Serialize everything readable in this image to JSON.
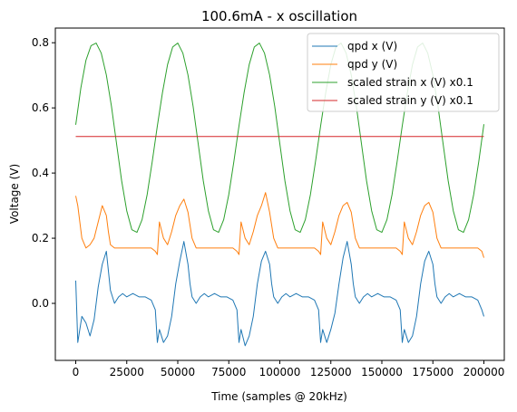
{
  "chart_data": {
    "type": "line",
    "title": "100.6mA - x oscillation",
    "xlabel": "Time (samples @ 20kHz)",
    "ylabel": "Voltage (V)",
    "xlim": [
      -10000,
      210000
    ],
    "ylim": [
      -0.175,
      0.845
    ],
    "xticks": [
      0,
      25000,
      50000,
      75000,
      100000,
      125000,
      150000,
      175000,
      200000
    ],
    "yticks": [
      0.0,
      0.2,
      0.4,
      0.6,
      0.8
    ],
    "xtick_labels": [
      "0",
      "25000",
      "50000",
      "75000",
      "100000",
      "125000",
      "150000",
      "175000",
      "200000"
    ],
    "ytick_labels": [
      "0.0",
      "0.2",
      "0.4",
      "0.6",
      "0.8"
    ],
    "grid": false,
    "legend_position": "top-right",
    "series": [
      {
        "name": "qpd x (V)",
        "color": "#1f77b4",
        "x": [
          0,
          1000,
          3000,
          5000,
          7000,
          9000,
          11000,
          13000,
          15000,
          16000,
          17000,
          19000,
          21000,
          23000,
          25000,
          28000,
          31000,
          34000,
          37000,
          39000,
          40000,
          41000,
          43000,
          45000,
          47000,
          49000,
          51000,
          53000,
          55000,
          56000,
          57000,
          59000,
          61000,
          63000,
          65000,
          68000,
          71000,
          74000,
          77000,
          79000,
          80000,
          81000,
          83000,
          85000,
          87000,
          89000,
          91000,
          93000,
          95000,
          96000,
          97000,
          99000,
          101000,
          103000,
          105000,
          108000,
          111000,
          114000,
          117000,
          119000,
          120000,
          121000,
          123000,
          125000,
          127000,
          129000,
          131000,
          133000,
          135000,
          136000,
          137000,
          139000,
          141000,
          143000,
          145000,
          148000,
          151000,
          154000,
          157000,
          159000,
          160000,
          161000,
          163000,
          165000,
          167000,
          169000,
          171000,
          173000,
          175000,
          176000,
          177000,
          179000,
          181000,
          183000,
          185000,
          188000,
          191000,
          194000,
          197000,
          199000,
          200000
        ],
        "y": [
          0.07,
          -0.12,
          -0.04,
          -0.06,
          -0.1,
          -0.05,
          0.05,
          0.12,
          0.16,
          0.1,
          0.04,
          0.0,
          0.02,
          0.03,
          0.02,
          0.03,
          0.02,
          0.02,
          0.01,
          -0.02,
          -0.12,
          -0.08,
          -0.12,
          -0.1,
          -0.04,
          0.06,
          0.13,
          0.19,
          0.12,
          0.06,
          0.02,
          0.0,
          0.02,
          0.03,
          0.02,
          0.03,
          0.02,
          0.02,
          0.01,
          -0.02,
          -0.12,
          -0.08,
          -0.13,
          -0.1,
          -0.04,
          0.06,
          0.13,
          0.16,
          0.12,
          0.06,
          0.02,
          0.0,
          0.02,
          0.03,
          0.02,
          0.03,
          0.02,
          0.02,
          0.01,
          -0.02,
          -0.12,
          -0.08,
          -0.12,
          -0.08,
          -0.03,
          0.06,
          0.14,
          0.19,
          0.12,
          0.06,
          0.02,
          0.0,
          0.02,
          0.03,
          0.02,
          0.03,
          0.02,
          0.02,
          0.01,
          -0.02,
          -0.12,
          -0.08,
          -0.12,
          -0.1,
          -0.04,
          0.06,
          0.13,
          0.16,
          0.12,
          0.06,
          0.02,
          0.0,
          0.02,
          0.03,
          0.02,
          0.03,
          0.02,
          0.02,
          0.01,
          -0.02,
          -0.04
        ]
      },
      {
        "name": "qpd y (V)",
        "color": "#ff7f0e",
        "x": [
          0,
          1000,
          3000,
          5000,
          7000,
          9000,
          11000,
          13000,
          15000,
          16000,
          17000,
          19000,
          21000,
          23000,
          25000,
          28000,
          31000,
          34000,
          37000,
          39000,
          40000,
          41000,
          43000,
          45000,
          47000,
          49000,
          51000,
          53000,
          55000,
          56000,
          57000,
          59000,
          61000,
          63000,
          65000,
          68000,
          71000,
          74000,
          77000,
          79000,
          80000,
          81000,
          83000,
          85000,
          87000,
          89000,
          91000,
          93000,
          95000,
          96000,
          97000,
          99000,
          101000,
          103000,
          105000,
          108000,
          111000,
          114000,
          117000,
          119000,
          120000,
          121000,
          123000,
          125000,
          127000,
          129000,
          131000,
          133000,
          135000,
          136000,
          137000,
          139000,
          141000,
          143000,
          145000,
          148000,
          151000,
          154000,
          157000,
          159000,
          160000,
          161000,
          163000,
          165000,
          167000,
          169000,
          171000,
          173000,
          175000,
          176000,
          177000,
          179000,
          181000,
          183000,
          185000,
          188000,
          191000,
          194000,
          197000,
          199000,
          200000
        ],
        "y": [
          0.33,
          0.3,
          0.2,
          0.17,
          0.18,
          0.2,
          0.25,
          0.3,
          0.27,
          0.22,
          0.18,
          0.17,
          0.17,
          0.17,
          0.17,
          0.17,
          0.17,
          0.17,
          0.17,
          0.16,
          0.15,
          0.25,
          0.2,
          0.18,
          0.22,
          0.27,
          0.3,
          0.32,
          0.28,
          0.24,
          0.2,
          0.17,
          0.17,
          0.17,
          0.17,
          0.17,
          0.17,
          0.17,
          0.17,
          0.16,
          0.15,
          0.25,
          0.2,
          0.18,
          0.22,
          0.27,
          0.3,
          0.34,
          0.28,
          0.24,
          0.2,
          0.17,
          0.17,
          0.17,
          0.17,
          0.17,
          0.17,
          0.17,
          0.17,
          0.16,
          0.15,
          0.25,
          0.2,
          0.18,
          0.22,
          0.27,
          0.3,
          0.31,
          0.28,
          0.24,
          0.2,
          0.17,
          0.17,
          0.17,
          0.17,
          0.17,
          0.17,
          0.17,
          0.17,
          0.16,
          0.15,
          0.25,
          0.2,
          0.18,
          0.22,
          0.27,
          0.3,
          0.31,
          0.28,
          0.24,
          0.2,
          0.17,
          0.17,
          0.17,
          0.17,
          0.17,
          0.17,
          0.17,
          0.17,
          0.16,
          0.14
        ]
      },
      {
        "name": "scaled strain x (V) x0.1",
        "color": "#2ca02c",
        "x": [
          0,
          2500,
          5000,
          7500,
          10000,
          12500,
          15000,
          17500,
          20000,
          22500,
          25000,
          27500,
          30000,
          32500,
          35000,
          37500,
          40000,
          42500,
          45000,
          47500,
          50000,
          52500,
          55000,
          57500,
          60000,
          62500,
          65000,
          67500,
          70000,
          72500,
          75000,
          77500,
          80000,
          82500,
          85000,
          87500,
          90000,
          92500,
          95000,
          97500,
          100000,
          102500,
          105000,
          107500,
          110000,
          112500,
          115000,
          117500,
          120000,
          122500,
          125000,
          127500,
          130000,
          132500,
          135000,
          137500,
          140000,
          142500,
          145000,
          147500,
          150000,
          152500,
          155000,
          157500,
          160000,
          162500,
          165000,
          167500,
          170000,
          172500,
          175000,
          177500,
          180000,
          182500,
          185000,
          187500,
          190000,
          192500,
          195000,
          197500,
          200000
        ],
        "y": [
          0.548,
          0.661,
          0.746,
          0.791,
          0.799,
          0.768,
          0.701,
          0.605,
          0.49,
          0.376,
          0.284,
          0.226,
          0.218,
          0.257,
          0.334,
          0.436,
          0.545,
          0.647,
          0.733,
          0.787,
          0.799,
          0.768,
          0.701,
          0.605,
          0.49,
          0.376,
          0.284,
          0.226,
          0.218,
          0.257,
          0.334,
          0.436,
          0.545,
          0.647,
          0.733,
          0.787,
          0.799,
          0.768,
          0.701,
          0.605,
          0.49,
          0.376,
          0.284,
          0.226,
          0.218,
          0.257,
          0.334,
          0.436,
          0.545,
          0.647,
          0.733,
          0.787,
          0.799,
          0.768,
          0.701,
          0.605,
          0.49,
          0.376,
          0.284,
          0.226,
          0.218,
          0.257,
          0.334,
          0.436,
          0.545,
          0.647,
          0.733,
          0.787,
          0.799,
          0.768,
          0.701,
          0.605,
          0.49,
          0.376,
          0.284,
          0.226,
          0.218,
          0.257,
          0.334,
          0.436,
          0.55
        ]
      },
      {
        "name": "scaled strain y (V) x0.1",
        "color": "#d62728",
        "x": [
          0,
          200000
        ],
        "y": [
          0.512,
          0.512
        ]
      }
    ]
  }
}
